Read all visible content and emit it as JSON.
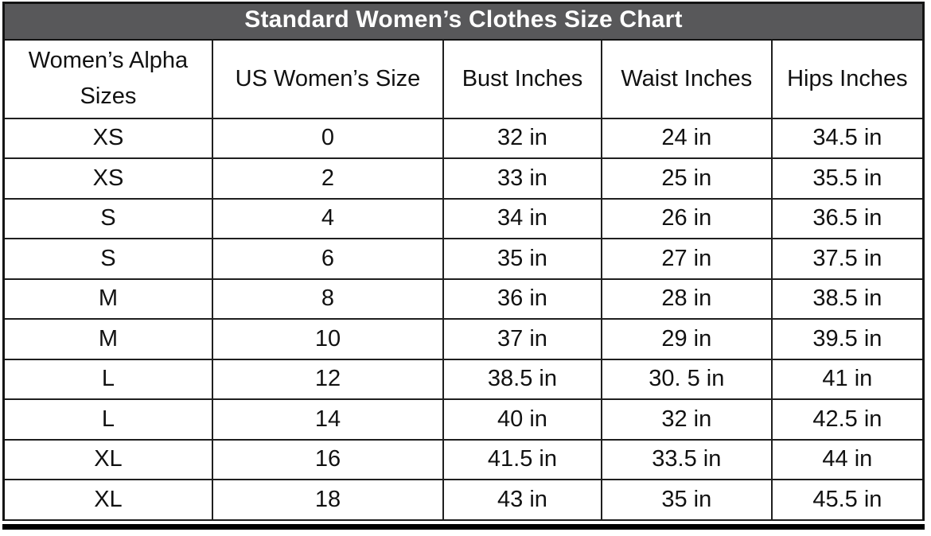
{
  "chart_data": {
    "type": "table",
    "title": "Standard Women’s Clothes Size Chart",
    "columns": [
      "Women’s Alpha Sizes",
      "US Women’s Size",
      "Bust Inches",
      "Waist Inches",
      "Hips Inches"
    ],
    "rows": [
      [
        "XS",
        "0",
        "32 in",
        "24 in",
        "34.5 in"
      ],
      [
        "XS",
        "2",
        "33 in",
        "25 in",
        "35.5 in"
      ],
      [
        "S",
        "4",
        "34 in",
        "26 in",
        "36.5 in"
      ],
      [
        "S",
        "6",
        "35 in",
        "27 in",
        "37.5 in"
      ],
      [
        "M",
        "8",
        "36 in",
        "28 in",
        "38.5 in"
      ],
      [
        "M",
        "10",
        "37 in",
        "29 in",
        "39.5 in"
      ],
      [
        "L",
        "12",
        "38.5 in",
        "30. 5 in",
        "41 in"
      ],
      [
        "L",
        "14",
        "40 in",
        "32 in",
        "42.5 in"
      ],
      [
        "XL",
        "16",
        "41.5 in",
        "33.5 in",
        "44 in"
      ],
      [
        "XL",
        "18",
        "43 in",
        "35 in",
        "45.5 in"
      ]
    ],
    "numeric": {
      "alpha_sizes": [
        "XS",
        "XS",
        "S",
        "S",
        "M",
        "M",
        "L",
        "L",
        "XL",
        "XL"
      ],
      "us_sizes": [
        0,
        2,
        4,
        6,
        8,
        10,
        12,
        14,
        16,
        18
      ],
      "bust_in": [
        32,
        33,
        34,
        35,
        36,
        37,
        38.5,
        40,
        41.5,
        43
      ],
      "waist_in": [
        24,
        25,
        26,
        27,
        28,
        29,
        30.5,
        32,
        33.5,
        35
      ],
      "hips_in": [
        34.5,
        35.5,
        36.5,
        37.5,
        38.5,
        39.5,
        41,
        42.5,
        44,
        45.5
      ],
      "units": "inches"
    },
    "layout": {
      "title_position": "top-banner",
      "grid": "full-borders"
    }
  },
  "colors": {
    "title_bg": "#58585a",
    "title_text": "#ffffff",
    "border": "#1f1f1f",
    "cell_text": "#111111",
    "background": "#ffffff"
  }
}
